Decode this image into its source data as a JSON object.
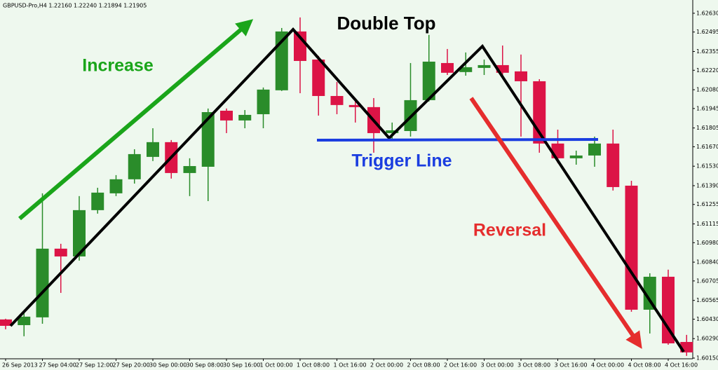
{
  "chart_data": {
    "type": "candlestick",
    "title": "GBPUSD-Pro,H4  1.22160 1.22240 1.21894 1.21905",
    "annotations": [
      "Increase",
      "Double Top",
      "Trigger Line",
      "Reversal"
    ],
    "categories": [
      "26 Sep 2013",
      null,
      "27 Sep 04:00",
      null,
      "27 Sep 12:00",
      null,
      "27 Sep 20:00",
      null,
      "30 Sep 00:00",
      null,
      "30 Sep 08:00",
      null,
      "30 Sep 16:00",
      null,
      "1 Oct 00:00",
      null,
      "1 Oct 08:00",
      null,
      "1 Oct 16:00",
      null,
      "2 Oct 00:00",
      null,
      "2 Oct 08:00",
      null,
      "2 Oct 16:00",
      null,
      "3 Oct 00:00",
      null,
      "3 Oct 08:00",
      null,
      "3 Oct 16:00",
      null,
      "4 Oct 00:00",
      null,
      "4 Oct 08:00",
      null,
      "4 Oct 16:00",
      null
    ],
    "open": [
      1.60428,
      1.60387,
      1.60443,
      1.60937,
      1.60881,
      1.61214,
      1.61335,
      1.61436,
      1.61597,
      1.61703,
      1.61481,
      1.61526,
      1.61929,
      1.61859,
      1.61904,
      1.62076,
      1.62499,
      1.62297,
      1.62035,
      1.6197,
      1.61955,
      1.61768,
      1.61783,
      1.62005,
      1.62272,
      1.62207,
      1.62237,
      1.62257,
      1.62212,
      1.62141,
      1.61693,
      1.61587,
      1.61607,
      1.61693,
      1.6139,
      1.60498,
      1.60735,
      1.60266
    ],
    "high": [
      1.60433,
      1.60473,
      1.61335,
      1.60972,
      1.61315,
      1.61375,
      1.61466,
      1.61652,
      1.61803,
      1.61718,
      1.61587,
      1.61945,
      1.61945,
      1.61934,
      1.62096,
      1.62524,
      1.626,
      1.62323,
      1.62136,
      1.6202,
      1.6202,
      1.61844,
      1.62272,
      1.62474,
      1.62373,
      1.62348,
      1.62297,
      1.62398,
      1.62333,
      1.62156,
      1.61793,
      1.61642,
      1.61743,
      1.61793,
      1.61425,
      1.6076,
      1.60786,
      1.60317
    ],
    "low": [
      1.60357,
      1.60307,
      1.60397,
      1.60619,
      1.60851,
      1.61189,
      1.61315,
      1.61405,
      1.61567,
      1.61441,
      1.61315,
      1.61279,
      1.61768,
      1.61803,
      1.61803,
      1.62071,
      1.62055,
      1.61894,
      1.61904,
      1.61844,
      1.61627,
      1.61718,
      1.61743,
      1.61995,
      1.62186,
      1.62181,
      1.62186,
      1.62171,
      1.61743,
      1.61627,
      1.61551,
      1.61541,
      1.61526,
      1.61355,
      1.60483,
      1.60327,
      1.60246,
      1.60166
    ],
    "close": [
      1.60382,
      1.60448,
      1.60937,
      1.60881,
      1.61214,
      1.6134,
      1.61436,
      1.61617,
      1.61703,
      1.61481,
      1.61531,
      1.61919,
      1.61859,
      1.61899,
      1.62081,
      1.62499,
      1.62287,
      1.62035,
      1.6197,
      1.61955,
      1.61768,
      1.61788,
      1.62005,
      1.62282,
      1.62202,
      1.62242,
      1.62257,
      1.62202,
      1.62141,
      1.61693,
      1.61587,
      1.61607,
      1.61693,
      1.6138,
      1.60498,
      1.60735,
      1.60256,
      1.60191
    ],
    "up_color": "#2a8c2a",
    "down_color": "#dc1446",
    "ylim": [
      1.60145,
      1.62685
    ],
    "yticks": [
      {
        "value": 1.6263,
        "label": "1.62630"
      },
      1.62495,
      1.62355,
      {
        "value": 1.6222,
        "label": "1.62220"
      },
      {
        "value": 1.6208,
        "label": "1.62080"
      },
      1.61945,
      1.61805,
      {
        "value": 1.6167,
        "label": "1.61670"
      },
      {
        "value": 1.6153,
        "label": "1.61530"
      },
      {
        "value": 1.6139,
        "label": "1.61390"
      },
      1.61255,
      1.61115,
      {
        "value": 1.6098,
        "label": "1.60980"
      },
      {
        "value": 1.6084,
        "label": "1.60840"
      },
      1.60705,
      1.60565,
      {
        "value": 1.6043,
        "label": "1.60430"
      },
      {
        "value": 1.6029,
        "label": "1.60290"
      },
      {
        "value": 1.6015,
        "label": "1.60150"
      }
    ]
  }
}
